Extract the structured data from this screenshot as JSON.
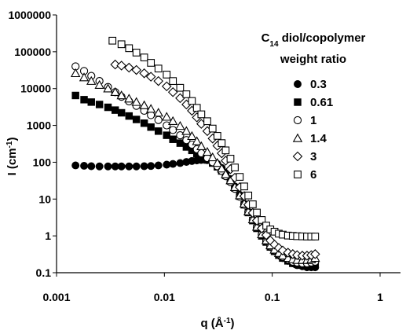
{
  "chart_data": {
    "type": "scatter",
    "xscale": "log",
    "yscale": "log",
    "xlim": [
      0.001,
      1
    ],
    "ylim": [
      0.1,
      1000000
    ],
    "x_ticks": [
      "0.001",
      "0.01",
      "0.1",
      "1"
    ],
    "y_ticks": [
      "0.1",
      "1",
      "10",
      "100",
      "1000",
      "10000",
      "100000",
      "1000000"
    ],
    "xlabel": {
      "main": "q (Å",
      "sup": "-1",
      "end": ")"
    },
    "ylabel": {
      "main": "I (cm",
      "sup": "-1",
      "end": ")"
    },
    "legend_title": {
      "line1_prefix": "C",
      "line1_sub": "14",
      "line1_rest": " diol/copolymer",
      "line2": "weight ratio"
    },
    "legend_position": "right",
    "grid": false,
    "series": [
      {
        "name": "0.3",
        "marker": "filled-circle",
        "color": "#000000",
        "points": [
          [
            0.0015,
            82
          ],
          [
            0.0018,
            80
          ],
          [
            0.0021,
            78
          ],
          [
            0.0025,
            77
          ],
          [
            0.003,
            77
          ],
          [
            0.0035,
            77
          ],
          [
            0.004,
            77
          ],
          [
            0.0047,
            77
          ],
          [
            0.0055,
            77
          ],
          [
            0.0065,
            78
          ],
          [
            0.0075,
            79
          ],
          [
            0.0088,
            82
          ],
          [
            0.0105,
            86
          ],
          [
            0.012,
            90
          ],
          [
            0.014,
            95
          ],
          [
            0.016,
            102
          ],
          [
            0.018,
            108
          ],
          [
            0.02,
            112
          ],
          [
            0.022,
            115
          ],
          [
            0.025,
            114
          ],
          [
            0.028,
            105
          ],
          [
            0.031,
            90
          ],
          [
            0.034,
            70
          ],
          [
            0.037,
            52
          ],
          [
            0.041,
            35
          ],
          [
            0.045,
            22
          ],
          [
            0.05,
            13
          ],
          [
            0.055,
            7.5
          ],
          [
            0.06,
            4.5
          ],
          [
            0.066,
            2.7
          ],
          [
            0.072,
            1.7
          ],
          [
            0.08,
            1.05
          ],
          [
            0.088,
            0.7
          ],
          [
            0.096,
            0.5
          ],
          [
            0.105,
            0.38
          ],
          [
            0.115,
            0.3
          ],
          [
            0.125,
            0.25
          ],
          [
            0.14,
            0.21
          ],
          [
            0.155,
            0.18
          ],
          [
            0.17,
            0.16
          ],
          [
            0.19,
            0.15
          ],
          [
            0.21,
            0.14
          ],
          [
            0.23,
            0.14
          ],
          [
            0.25,
            0.14
          ]
        ]
      },
      {
        "name": "0.61",
        "marker": "filled-square",
        "color": "#000000",
        "points": [
          [
            0.0015,
            6500
          ],
          [
            0.0018,
            5000
          ],
          [
            0.0021,
            4300
          ],
          [
            0.0025,
            3700
          ],
          [
            0.003,
            3100
          ],
          [
            0.0035,
            2600
          ],
          [
            0.004,
            2200
          ],
          [
            0.0047,
            1800
          ],
          [
            0.0055,
            1450
          ],
          [
            0.0065,
            1150
          ],
          [
            0.0075,
            900
          ],
          [
            0.0088,
            700
          ],
          [
            0.0105,
            540
          ],
          [
            0.012,
            420
          ],
          [
            0.014,
            330
          ],
          [
            0.016,
            260
          ],
          [
            0.018,
            210
          ],
          [
            0.02,
            170
          ],
          [
            0.022,
            140
          ],
          [
            0.025,
            115
          ],
          [
            0.028,
            95
          ],
          [
            0.031,
            75
          ],
          [
            0.034,
            58
          ],
          [
            0.037,
            44
          ],
          [
            0.041,
            31
          ],
          [
            0.045,
            20
          ],
          [
            0.05,
            12
          ],
          [
            0.055,
            7
          ],
          [
            0.06,
            4.3
          ],
          [
            0.066,
            2.6
          ],
          [
            0.072,
            1.6
          ],
          [
            0.08,
            1
          ],
          [
            0.088,
            0.68
          ],
          [
            0.096,
            0.5
          ],
          [
            0.105,
            0.38
          ],
          [
            0.115,
            0.3
          ],
          [
            0.125,
            0.25
          ],
          [
            0.14,
            0.21
          ],
          [
            0.155,
            0.18
          ],
          [
            0.17,
            0.17
          ],
          [
            0.19,
            0.16
          ],
          [
            0.21,
            0.16
          ],
          [
            0.23,
            0.16
          ],
          [
            0.25,
            0.17
          ]
        ]
      },
      {
        "name": "1",
        "marker": "open-circle",
        "color": "#000000",
        "points": [
          [
            0.0015,
            40000
          ],
          [
            0.0018,
            30000
          ],
          [
            0.0021,
            22000
          ],
          [
            0.0025,
            16000
          ],
          [
            0.003,
            11000
          ],
          [
            0.0035,
            8000
          ],
          [
            0.004,
            6000
          ],
          [
            0.0047,
            4500
          ],
          [
            0.0055,
            3400
          ],
          [
            0.0065,
            2500
          ],
          [
            0.0075,
            1900
          ],
          [
            0.0088,
            1400
          ],
          [
            0.0105,
            1000
          ],
          [
            0.012,
            750
          ],
          [
            0.014,
            540
          ],
          [
            0.016,
            400
          ],
          [
            0.018,
            300
          ],
          [
            0.02,
            225
          ],
          [
            0.022,
            175
          ],
          [
            0.025,
            130
          ],
          [
            0.028,
            100
          ],
          [
            0.031,
            78
          ],
          [
            0.034,
            58
          ],
          [
            0.037,
            42
          ],
          [
            0.041,
            29
          ],
          [
            0.045,
            19
          ],
          [
            0.05,
            11.5
          ],
          [
            0.055,
            7
          ],
          [
            0.06,
            4.4
          ],
          [
            0.066,
            2.7
          ],
          [
            0.072,
            1.7
          ],
          [
            0.08,
            1.1
          ],
          [
            0.088,
            0.72
          ],
          [
            0.096,
            0.52
          ],
          [
            0.105,
            0.4
          ],
          [
            0.115,
            0.32
          ],
          [
            0.125,
            0.27
          ],
          [
            0.14,
            0.23
          ],
          [
            0.155,
            0.2
          ],
          [
            0.17,
            0.19
          ],
          [
            0.19,
            0.18
          ],
          [
            0.21,
            0.18
          ],
          [
            0.23,
            0.19
          ],
          [
            0.25,
            0.2
          ]
        ]
      },
      {
        "name": "1.4",
        "marker": "open-triangle",
        "color": "#000000",
        "points": [
          [
            0.0015,
            26000
          ],
          [
            0.0018,
            20000
          ],
          [
            0.0021,
            16000
          ],
          [
            0.0025,
            12500
          ],
          [
            0.003,
            10000
          ],
          [
            0.0035,
            8000
          ],
          [
            0.004,
            6500
          ],
          [
            0.0047,
            5300
          ],
          [
            0.0055,
            4300
          ],
          [
            0.0065,
            3500
          ],
          [
            0.0075,
            2800
          ],
          [
            0.0088,
            2200
          ],
          [
            0.0105,
            1700
          ],
          [
            0.012,
            1300
          ],
          [
            0.014,
            960
          ],
          [
            0.016,
            700
          ],
          [
            0.018,
            510
          ],
          [
            0.02,
            370
          ],
          [
            0.022,
            270
          ],
          [
            0.025,
            190
          ],
          [
            0.028,
            135
          ],
          [
            0.031,
            95
          ],
          [
            0.034,
            67
          ],
          [
            0.037,
            47
          ],
          [
            0.041,
            32
          ],
          [
            0.045,
            21
          ],
          [
            0.05,
            12.5
          ],
          [
            0.055,
            7.5
          ],
          [
            0.06,
            4.6
          ],
          [
            0.066,
            2.8
          ],
          [
            0.072,
            1.75
          ],
          [
            0.08,
            1.1
          ],
          [
            0.088,
            0.75
          ],
          [
            0.096,
            0.55
          ],
          [
            0.105,
            0.42
          ],
          [
            0.115,
            0.34
          ],
          [
            0.125,
            0.29
          ],
          [
            0.14,
            0.25
          ],
          [
            0.155,
            0.23
          ],
          [
            0.17,
            0.22
          ],
          [
            0.19,
            0.22
          ],
          [
            0.21,
            0.22
          ],
          [
            0.23,
            0.23
          ],
          [
            0.25,
            0.25
          ]
        ]
      },
      {
        "name": "3",
        "marker": "open-diamond",
        "color": "#000000",
        "points": [
          [
            0.0035,
            45000
          ],
          [
            0.004,
            42000
          ],
          [
            0.0047,
            37000
          ],
          [
            0.0055,
            32000
          ],
          [
            0.0065,
            26000
          ],
          [
            0.0075,
            21000
          ],
          [
            0.0088,
            16000
          ],
          [
            0.0105,
            11500
          ],
          [
            0.012,
            8000
          ],
          [
            0.014,
            5500
          ],
          [
            0.016,
            3700
          ],
          [
            0.018,
            2500
          ],
          [
            0.02,
            1650
          ],
          [
            0.022,
            1100
          ],
          [
            0.025,
            700
          ],
          [
            0.028,
            440
          ],
          [
            0.031,
            280
          ],
          [
            0.034,
            175
          ],
          [
            0.037,
            110
          ],
          [
            0.041,
            65
          ],
          [
            0.045,
            38
          ],
          [
            0.05,
            21
          ],
          [
            0.055,
            12
          ],
          [
            0.06,
            7
          ],
          [
            0.066,
            4.2
          ],
          [
            0.072,
            2.6
          ],
          [
            0.08,
            1.6
          ],
          [
            0.088,
            1.05
          ],
          [
            0.096,
            0.75
          ],
          [
            0.105,
            0.58
          ],
          [
            0.115,
            0.47
          ],
          [
            0.125,
            0.4
          ],
          [
            0.14,
            0.35
          ],
          [
            0.155,
            0.32
          ],
          [
            0.17,
            0.3
          ],
          [
            0.19,
            0.29
          ],
          [
            0.21,
            0.29
          ],
          [
            0.23,
            0.3
          ],
          [
            0.25,
            0.32
          ]
        ]
      },
      {
        "name": "6",
        "marker": "open-square",
        "color": "#000000",
        "points": [
          [
            0.0033,
            200000
          ],
          [
            0.004,
            160000
          ],
          [
            0.0047,
            125000
          ],
          [
            0.0055,
            95000
          ],
          [
            0.0065,
            70000
          ],
          [
            0.0075,
            50000
          ],
          [
            0.0088,
            35000
          ],
          [
            0.0105,
            24000
          ],
          [
            0.012,
            16000
          ],
          [
            0.014,
            10500
          ],
          [
            0.016,
            7000
          ],
          [
            0.018,
            4600
          ],
          [
            0.02,
            3000
          ],
          [
            0.022,
            2000
          ],
          [
            0.025,
            1300
          ],
          [
            0.028,
            820
          ],
          [
            0.031,
            520
          ],
          [
            0.034,
            330
          ],
          [
            0.037,
            210
          ],
          [
            0.041,
            125
          ],
          [
            0.045,
            72
          ],
          [
            0.05,
            40
          ],
          [
            0.055,
            22
          ],
          [
            0.06,
            12.5
          ],
          [
            0.066,
            7.2
          ],
          [
            0.072,
            4.3
          ],
          [
            0.08,
            2.7
          ],
          [
            0.088,
            1.9
          ],
          [
            0.096,
            1.5
          ],
          [
            0.105,
            1.3
          ],
          [
            0.115,
            1.15
          ],
          [
            0.125,
            1.08
          ],
          [
            0.14,
            1.02
          ],
          [
            0.155,
            1
          ],
          [
            0.17,
            0.98
          ],
          [
            0.19,
            0.97
          ],
          [
            0.21,
            0.96
          ],
          [
            0.23,
            0.96
          ],
          [
            0.25,
            0.96
          ]
        ]
      }
    ]
  }
}
